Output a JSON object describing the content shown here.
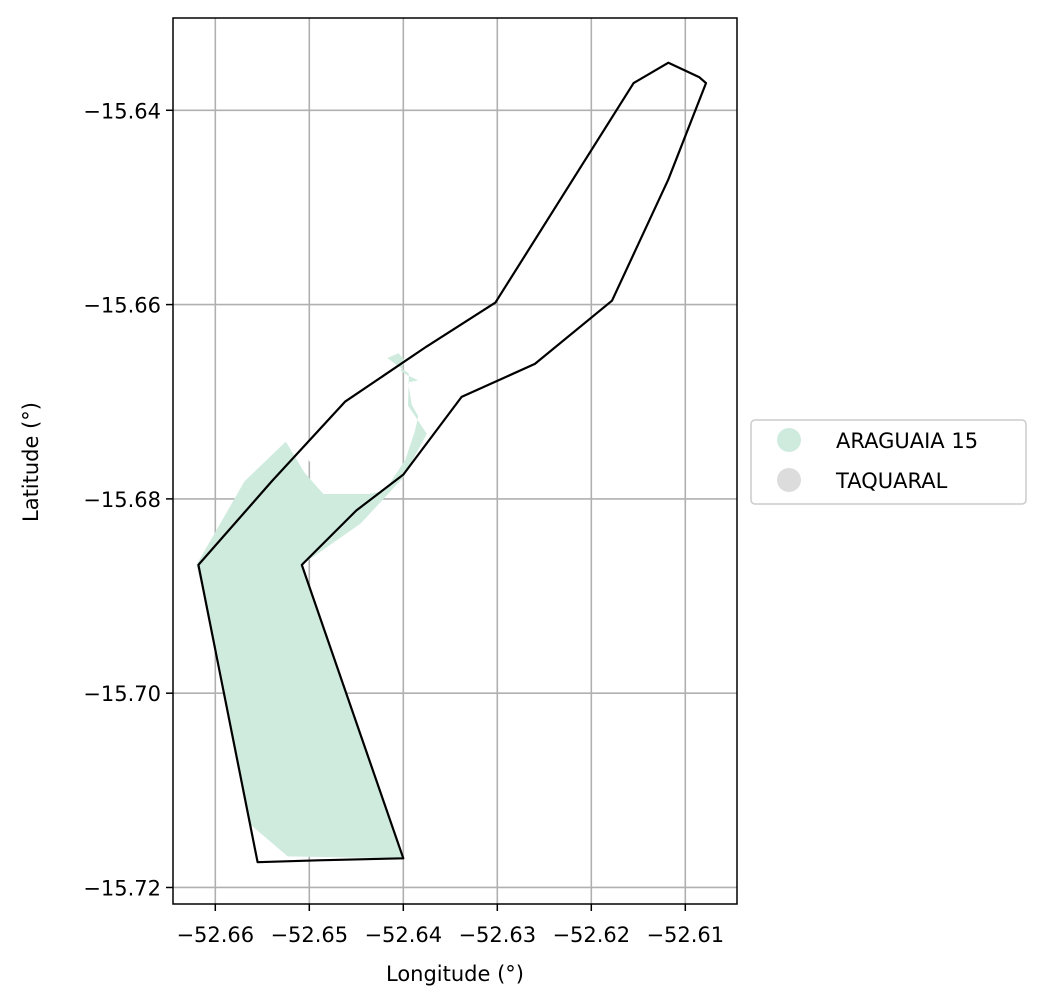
{
  "chart_data": {
    "type": "map",
    "xlabel": "Longitude (°)",
    "ylabel": "Latitude (°)",
    "xlim": [
      -52.6645,
      -52.6045
    ],
    "ylim": [
      -15.7217,
      -15.6305
    ],
    "grid": true,
    "x_ticks": [
      -52.66,
      -52.65,
      -52.64,
      -52.63,
      -52.62,
      -52.61
    ],
    "x_tick_labels": [
      "−52.66",
      "−52.65",
      "−52.64",
      "−52.63",
      "−52.62",
      "−52.61"
    ],
    "y_ticks": [
      -15.64,
      -15.66,
      -15.68,
      -15.7,
      -15.72
    ],
    "y_tick_labels": [
      "−15.64",
      "−15.66",
      "−15.68",
      "−15.70",
      "−15.72"
    ],
    "legend": {
      "placement": "right-outside",
      "entries": [
        {
          "label": "ARAGUAIA 15",
          "color": "#cfebde"
        },
        {
          "label": "TAQUARAL",
          "color": "#dcdcdc"
        }
      ]
    },
    "layers": [
      {
        "name": "ARAGUAIA 15",
        "kind": "fill",
        "color": "#cfebde",
        "coords": [
          [
            -52.6417,
            -15.6655
          ],
          [
            -52.6405,
            -15.665
          ],
          [
            -52.6398,
            -15.6658
          ],
          [
            -52.6403,
            -15.6668
          ],
          [
            -52.6395,
            -15.6673
          ],
          [
            -52.6384,
            -15.6678
          ],
          [
            -52.6395,
            -15.668
          ],
          [
            -52.6391,
            -15.6703
          ],
          [
            -52.6384,
            -15.6715
          ],
          [
            -52.6388,
            -15.6731
          ],
          [
            -52.6398,
            -15.676
          ],
          [
            -52.642,
            -15.6792
          ],
          [
            -52.6438,
            -15.6795
          ],
          [
            -52.6485,
            -15.6795
          ],
          [
            -52.6505,
            -15.6773
          ],
          [
            -52.6525,
            -15.6741
          ],
          [
            -52.6569,
            -15.6782
          ],
          [
            -52.662,
            -15.6868
          ],
          [
            -52.6597,
            -15.6962
          ],
          [
            -52.6563,
            -15.7135
          ],
          [
            -52.6523,
            -15.7168
          ],
          [
            -52.64,
            -15.717
          ],
          [
            -52.6508,
            -15.6868
          ],
          [
            -52.6445,
            -15.6825
          ],
          [
            -52.64,
            -15.6778
          ],
          [
            -52.6375,
            -15.6733
          ],
          [
            -52.6395,
            -15.6704
          ],
          [
            -52.6394,
            -15.6671
          ],
          [
            -52.6417,
            -15.6655
          ]
        ]
      },
      {
        "name": "ARAGUAIA 15 holes",
        "kind": "fill",
        "color": "#ffffff",
        "coords": [
          [
            -52.6508,
            -15.6738
          ],
          [
            -52.6475,
            -15.6745
          ],
          [
            -52.6445,
            -15.6762
          ],
          [
            -52.6427,
            -15.6775
          ],
          [
            -52.6461,
            -15.678
          ],
          [
            -52.6493,
            -15.6771
          ],
          [
            -52.6508,
            -15.675
          ],
          [
            -52.6508,
            -15.6738
          ]
        ]
      },
      {
        "name": "TAQUARAL",
        "kind": "outline",
        "color": "#000000",
        "coords": [
          [
            -52.6618,
            -15.6868
          ],
          [
            -52.654,
            -15.6782
          ],
          [
            -52.6462,
            -15.67
          ],
          [
            -52.6375,
            -15.6643
          ],
          [
            -52.6302,
            -15.6598
          ],
          [
            -52.6211,
            -15.6458
          ],
          [
            -52.6155,
            -15.6372
          ],
          [
            -52.6118,
            -15.6351
          ],
          [
            -52.6085,
            -15.6366
          ],
          [
            -52.6078,
            -15.6372
          ],
          [
            -52.6118,
            -15.6471
          ],
          [
            -52.6178,
            -15.6596
          ],
          [
            -52.626,
            -15.6661
          ],
          [
            -52.6338,
            -15.6695
          ],
          [
            -52.64,
            -15.6775
          ],
          [
            -52.645,
            -15.6812
          ],
          [
            -52.6508,
            -15.6868
          ],
          [
            -52.64,
            -15.717
          ],
          [
            -52.649,
            -15.7172
          ],
          [
            -52.6555,
            -15.7174
          ],
          [
            -52.6618,
            -15.6868
          ]
        ]
      }
    ]
  }
}
